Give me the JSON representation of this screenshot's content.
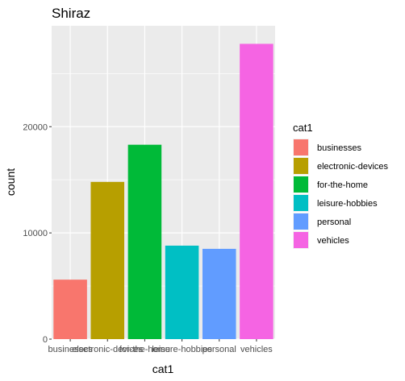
{
  "chart_data": {
    "type": "bar",
    "title": "Shiraz",
    "xlabel": "cat1",
    "ylabel": "count",
    "categories": [
      "businesses",
      "electronic-devices",
      "for-the-home",
      "leisure-hobbies",
      "personal",
      "vehicles"
    ],
    "values": [
      5600,
      14800,
      18300,
      8800,
      8500,
      27800
    ],
    "colors": [
      "#F8766D",
      "#B79F00",
      "#00BA38",
      "#00BFC4",
      "#619CFF",
      "#F564E3"
    ],
    "ylim": [
      0,
      29500
    ],
    "yticks": [
      0,
      10000,
      20000
    ],
    "grid": true,
    "legend": {
      "title": "cat1",
      "position": "right",
      "entries": [
        "businesses",
        "electronic-devices",
        "for-the-home",
        "leisure-hobbies",
        "personal",
        "vehicles"
      ]
    }
  }
}
